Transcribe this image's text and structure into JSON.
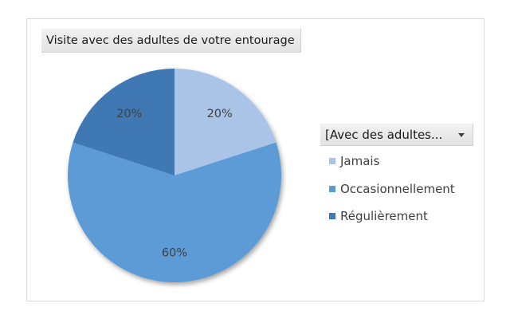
{
  "chart_data": {
    "type": "pie",
    "title": "Visite avec des adultes de votre entourage",
    "filter_label": "[Avec des adultes...",
    "categories": [
      "Jamais",
      "Occasionnellement",
      "Régulièrement"
    ],
    "values": [
      20,
      60,
      20
    ],
    "data_labels": [
      "20%",
      "60%",
      "20%"
    ],
    "colors": [
      "#a9c4e6",
      "#5b9bd5",
      "#3f78b3"
    ],
    "legend_position": "right"
  },
  "icons": {
    "filter_dropdown": "caret-down-icon"
  }
}
